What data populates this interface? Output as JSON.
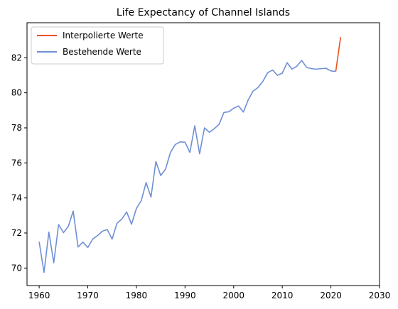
{
  "chart_data": {
    "type": "line",
    "title": "Life Expectancy of Channel Islands",
    "xlabel": "",
    "ylabel": "",
    "xlim": [
      1957.5,
      2030
    ],
    "ylim": [
      69.0,
      84.0
    ],
    "xticks": [
      1960,
      1970,
      1980,
      1990,
      2000,
      2010,
      2020,
      2030
    ],
    "yticks": [
      70,
      72,
      74,
      76,
      78,
      80,
      82
    ],
    "grid": false,
    "legend_position": "top-left",
    "series": [
      {
        "name": "Interpolierte Werte",
        "color": "#e8501c",
        "x": [
          2021,
          2022
        ],
        "y": [
          81.22,
          83.18
        ]
      },
      {
        "name": "Bestehende Werte",
        "color": "#6e8fd6",
        "x": [
          1960,
          1961,
          1962,
          1963,
          1964,
          1965,
          1966,
          1967,
          1968,
          1969,
          1970,
          1971,
          1972,
          1973,
          1974,
          1975,
          1976,
          1977,
          1978,
          1979,
          1980,
          1981,
          1982,
          1983,
          1984,
          1985,
          1986,
          1987,
          1988,
          1989,
          1990,
          1991,
          1992,
          1993,
          1994,
          1995,
          1996,
          1997,
          1998,
          1999,
          2000,
          2001,
          2002,
          2003,
          2004,
          2005,
          2006,
          2007,
          2008,
          2009,
          2010,
          2011,
          2012,
          2013,
          2014,
          2015,
          2016,
          2017,
          2018,
          2019,
          2020,
          2021
        ],
        "y": [
          71.5,
          69.75,
          72.05,
          70.3,
          72.48,
          72.02,
          72.38,
          73.25,
          71.2,
          71.48,
          71.17,
          71.65,
          71.85,
          72.1,
          72.2,
          71.65,
          72.55,
          72.8,
          73.2,
          72.5,
          73.4,
          73.85,
          74.88,
          74.05,
          76.08,
          75.28,
          75.65,
          76.6,
          77.05,
          77.2,
          77.18,
          76.6,
          78.12,
          76.52,
          78.0,
          77.75,
          77.95,
          78.2,
          78.88,
          78.92,
          79.12,
          79.25,
          78.9,
          79.6,
          80.1,
          80.3,
          80.65,
          81.15,
          81.3,
          81.0,
          81.12,
          81.72,
          81.35,
          81.52,
          81.85,
          81.45,
          81.38,
          81.35,
          81.38,
          81.4,
          81.25,
          81.22
        ]
      }
    ]
  }
}
